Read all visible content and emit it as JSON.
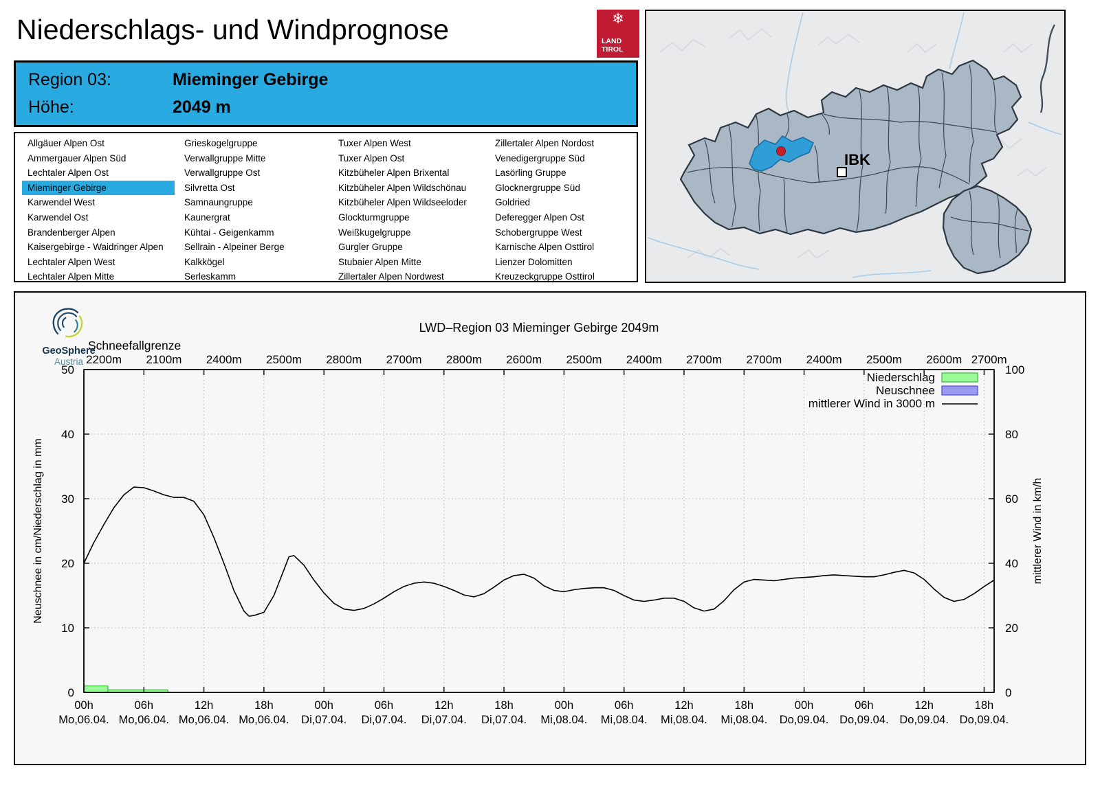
{
  "page": {
    "title": "Niederschlags- und Windprognose"
  },
  "land_tirol_logo": {
    "snowflake_icon": "❄",
    "line1": "LAND",
    "line2": "TIROL",
    "color": "#c11a33"
  },
  "region_header": {
    "bg": "#29abe2",
    "region_label": "Region 03:",
    "region_value": "Mieminger Gebirge",
    "altitude_label": "Höhe:",
    "altitude_value": "2049 m"
  },
  "region_list": {
    "selected": "Mieminger Gebirge",
    "highlight": "#29abe2",
    "columns": [
      [
        "Allgäuer Alpen Ost",
        "Ammergauer Alpen Süd",
        "Lechtaler Alpen Ost",
        "Mieminger Gebirge",
        "Karwendel West",
        "Karwendel Ost",
        "Brandenberger Alpen",
        "Kaisergebirge - Waidringer Alpen",
        "Lechtaler Alpen West",
        "Lechtaler Alpen Mitte"
      ],
      [
        "Grieskogelgruppe",
        "Verwallgruppe Mitte",
        "Verwallgruppe Ost",
        "Silvretta Ost",
        "Samnaungruppe",
        "Kaunergrat",
        "Kühtai - Geigenkamm",
        "Sellrain - Alpeiner Berge",
        "Kalkkögel",
        "Serleskamm"
      ],
      [
        "Tuxer Alpen West",
        "Tuxer Alpen Ost",
        "Kitzbüheler Alpen Brixental",
        "Kitzbüheler Alpen Wildschönau",
        "Kitzbüheler Alpen Wildseeloder",
        "Glockturmgruppe",
        "Weißkugelgruppe",
        "Gurgler Gruppe",
        "Stubaier Alpen Mitte",
        "Zillertaler Alpen Nordwest"
      ],
      [
        "Zillertaler Alpen Nordost",
        "Venedigergruppe Süd",
        "Lasörling Gruppe",
        "Glocknergruppe Süd",
        "Goldried",
        "Deferegger Alpen Ost",
        "Schobergruppe West",
        "Karnische Alpen Osttirol",
        "Lienzer Dolomitten",
        "Kreuzeckgruppe Osttirol"
      ]
    ]
  },
  "map": {
    "marker_label": "IBK",
    "highlight_color": "#2f9ed7"
  },
  "geosphere": {
    "name": "GeoSphere",
    "country": "Austria"
  },
  "chart_data": {
    "type": "line+bar",
    "title": "LWD–Region 03 Mieminger Gebirge 2049m",
    "snowline": {
      "label": "Schneefallgrenze",
      "values": [
        "2200m",
        "2100m",
        "2400m",
        "2500m",
        "2800m",
        "2700m",
        "2800m",
        "2600m",
        "2500m",
        "2400m",
        "2700m",
        "2700m",
        "2400m",
        "2500m",
        "2600m",
        "2700m"
      ]
    },
    "legend": [
      {
        "label": "Niederschlag",
        "swatch": "box",
        "fill": "#98fb98",
        "stroke": "#3db53d"
      },
      {
        "label": "Neuschnee",
        "swatch": "box",
        "fill": "#9a9af0",
        "stroke": "#4a4ad0"
      },
      {
        "label": "mittlerer Wind in 3000 m",
        "swatch": "line",
        "stroke": "#000000"
      }
    ],
    "y_left": {
      "label": "Neuschnee in cm/Niederschlag in mm",
      "min": 0,
      "max": 50,
      "step": 10
    },
    "y_right": {
      "label": "mittlerer Wind in km/h",
      "min": 0,
      "max": 100,
      "step": 20
    },
    "x_ticks": [
      {
        "time": "00h",
        "date": "Mo,06.04."
      },
      {
        "time": "06h",
        "date": "Mo,06.04."
      },
      {
        "time": "12h",
        "date": "Mo,06.04."
      },
      {
        "time": "18h",
        "date": "Mo,06.04."
      },
      {
        "time": "00h",
        "date": "Di,07.04."
      },
      {
        "time": "06h",
        "date": "Di,07.04."
      },
      {
        "time": "12h",
        "date": "Di,07.04."
      },
      {
        "time": "18h",
        "date": "Di,07.04."
      },
      {
        "time": "00h",
        "date": "Mi,08.04."
      },
      {
        "time": "06h",
        "date": "Mi,08.04."
      },
      {
        "time": "12h",
        "date": "Mi,08.04."
      },
      {
        "time": "18h",
        "date": "Mi,08.04."
      },
      {
        "time": "00h",
        "date": "Do,09.04."
      },
      {
        "time": "06h",
        "date": "Do,09.04."
      },
      {
        "time": "12h",
        "date": "Do,09.04."
      },
      {
        "time": "18h",
        "date": "Do,09.04."
      }
    ],
    "hours_per_tick": 6,
    "x_domain_hours": [
      0,
      91
    ],
    "wind_kmh": [
      [
        0,
        40
      ],
      [
        1,
        46.4
      ],
      [
        2,
        52
      ],
      [
        3,
        57.2
      ],
      [
        4,
        61.2
      ],
      [
        5,
        63.6
      ],
      [
        6,
        63.4
      ],
      [
        7,
        62.4
      ],
      [
        8,
        61.2
      ],
      [
        9,
        60.4
      ],
      [
        10,
        60.4
      ],
      [
        11,
        59.2
      ],
      [
        12,
        55
      ],
      [
        13,
        48
      ],
      [
        14,
        40
      ],
      [
        15,
        31.6
      ],
      [
        16,
        25.2
      ],
      [
        16.5,
        23.6
      ],
      [
        17,
        23.8
      ],
      [
        18,
        24.8
      ],
      [
        19,
        30
      ],
      [
        20,
        38
      ],
      [
        20.5,
        42
      ],
      [
        21,
        42.4
      ],
      [
        22,
        39.4
      ],
      [
        23,
        34.8
      ],
      [
        24,
        30.8
      ],
      [
        25,
        27.6
      ],
      [
        26,
        25.8
      ],
      [
        27,
        25.4
      ],
      [
        28,
        26
      ],
      [
        29,
        27.4
      ],
      [
        30,
        29.2
      ],
      [
        31,
        31.2
      ],
      [
        32,
        32.8
      ],
      [
        33,
        33.8
      ],
      [
        34,
        34.2
      ],
      [
        35,
        33.8
      ],
      [
        36,
        32.8
      ],
      [
        37,
        31.6
      ],
      [
        38,
        30.2
      ],
      [
        39,
        29.6
      ],
      [
        40,
        30.6
      ],
      [
        41,
        32.6
      ],
      [
        42,
        34.8
      ],
      [
        43,
        36.2
      ],
      [
        44,
        36.6
      ],
      [
        45,
        35.4
      ],
      [
        46,
        33
      ],
      [
        47,
        31.6
      ],
      [
        48,
        31.2
      ],
      [
        49,
        31.8
      ],
      [
        50,
        32.2
      ],
      [
        51,
        32.4
      ],
      [
        52,
        32.4
      ],
      [
        53,
        31.6
      ],
      [
        54,
        30
      ],
      [
        55,
        28.6
      ],
      [
        56,
        28.2
      ],
      [
        57,
        28.6
      ],
      [
        58,
        29.2
      ],
      [
        59,
        29.2
      ],
      [
        60,
        28.2
      ],
      [
        61,
        26.2
      ],
      [
        62,
        25.2
      ],
      [
        63,
        25.8
      ],
      [
        64,
        28.4
      ],
      [
        65,
        31.8
      ],
      [
        66,
        34.2
      ],
      [
        67,
        35
      ],
      [
        68,
        34.8
      ],
      [
        69,
        34.6
      ],
      [
        70,
        35
      ],
      [
        71,
        35.4
      ],
      [
        72,
        35.6
      ],
      [
        73,
        35.8
      ],
      [
        74,
        36.2
      ],
      [
        75,
        36.4
      ],
      [
        76,
        36.2
      ],
      [
        77,
        36
      ],
      [
        78,
        35.8
      ],
      [
        79,
        35.8
      ],
      [
        80,
        36.4
      ],
      [
        81,
        37.2
      ],
      [
        82,
        37.8
      ],
      [
        83,
        37
      ],
      [
        84,
        35
      ],
      [
        85,
        32
      ],
      [
        86,
        29.4
      ],
      [
        87,
        28.2
      ],
      [
        88,
        28.8
      ],
      [
        89,
        30.6
      ],
      [
        90,
        32.8
      ],
      [
        91,
        34.8
      ]
    ],
    "precip_bars_mm": [
      {
        "from_h": 0,
        "to_h": 2.4,
        "mm": 1.0
      },
      {
        "from_h": 2.4,
        "to_h": 8.4,
        "mm": 0.4
      }
    ],
    "neuschnee_bars_cm": []
  }
}
